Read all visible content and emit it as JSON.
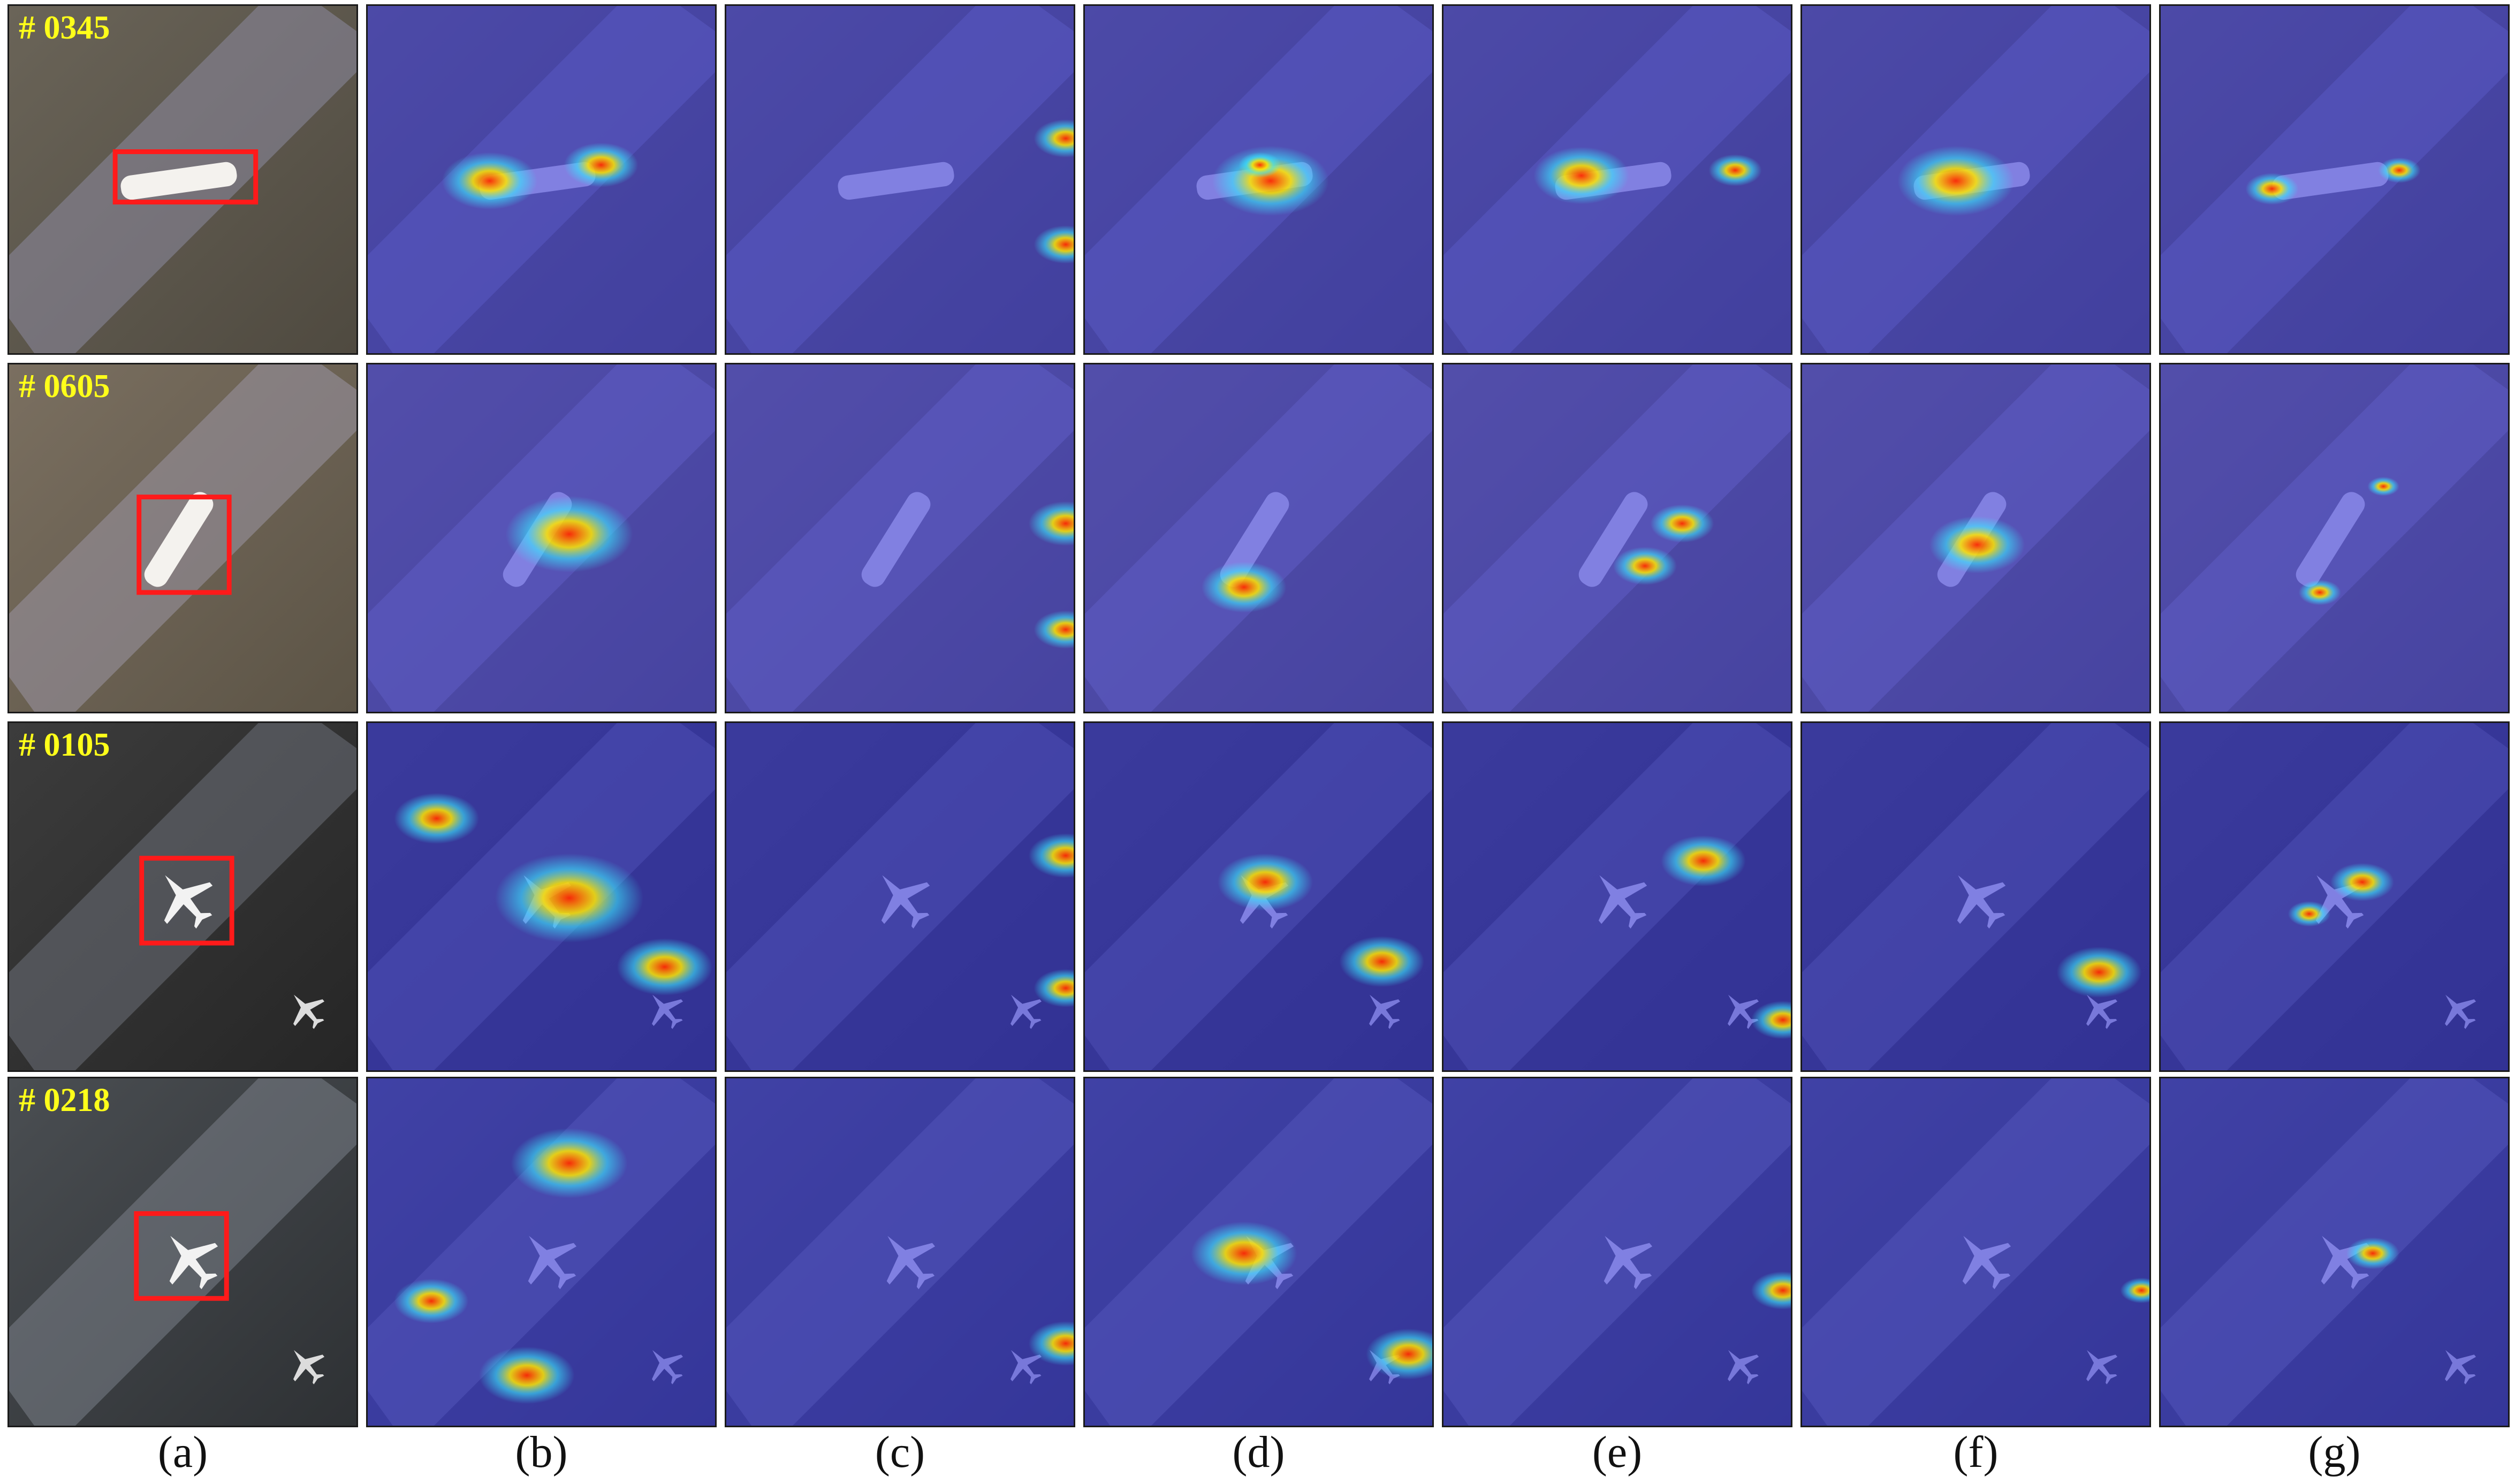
{
  "figure": {
    "row_ids": [
      "# 0345",
      "# 0605",
      "# 0105",
      "# 0218"
    ],
    "column_labels": [
      "(a)",
      "(b)",
      "(c)",
      "(d)",
      "(e)",
      "(f)",
      "(g)"
    ]
  },
  "colors": {
    "id_label": "#ffff1a",
    "box": "#ff1a1a",
    "heatmap_base": "#3a3ad8",
    "heatmap_hot": "#ff2a00"
  }
}
